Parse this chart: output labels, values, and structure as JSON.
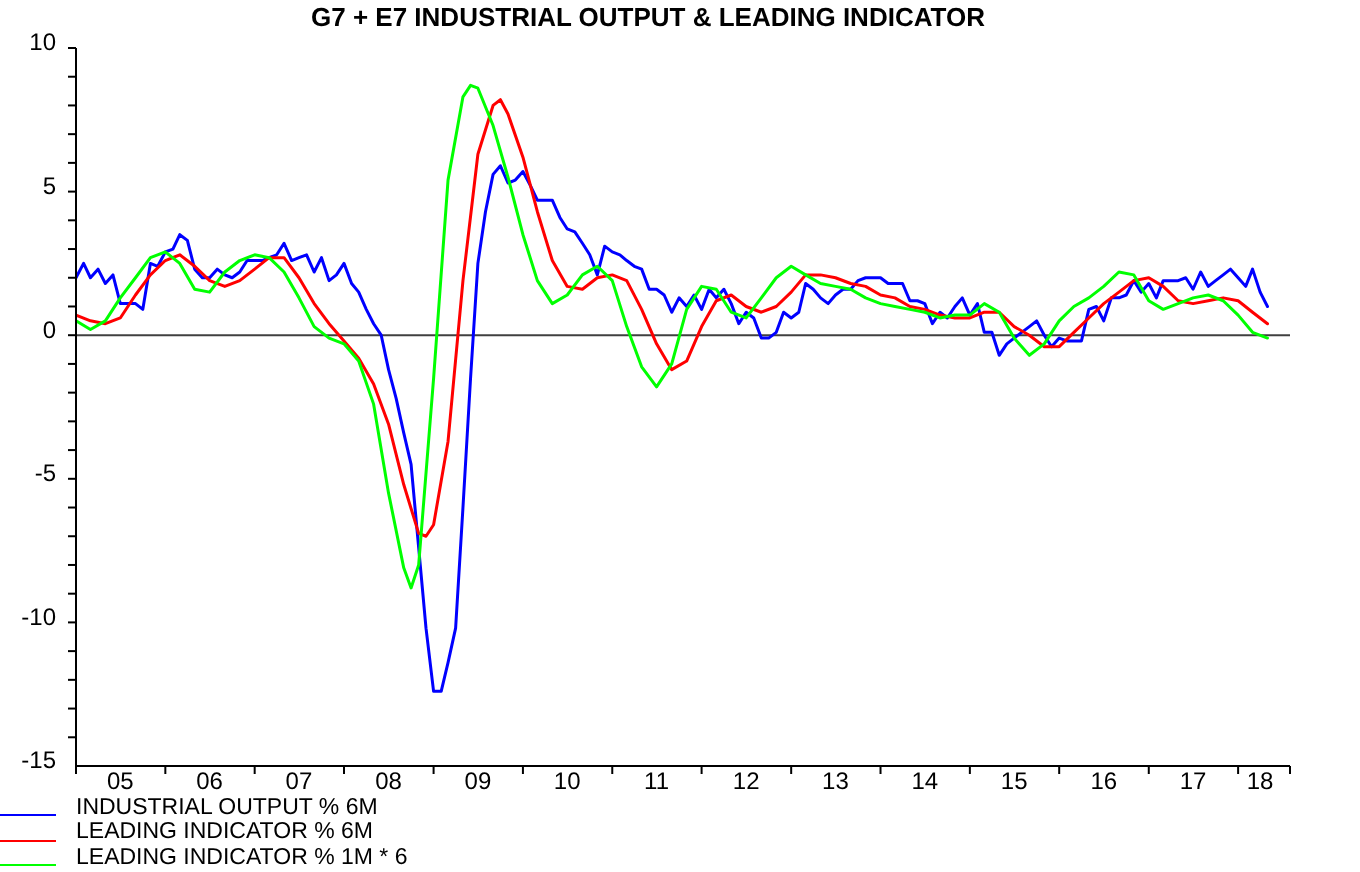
{
  "chart_data": {
    "type": "line",
    "title": "G7 + E7 INDUSTRIAL OUTPUT & LEADING INDICATOR",
    "xlim": [
      "2005-01",
      "2018-08"
    ],
    "xticks": [
      {
        "value": "2005-01",
        "label": null
      },
      {
        "value": "2005-07",
        "label": "05"
      },
      {
        "value": "2006-01",
        "label": null
      },
      {
        "value": "2006-07",
        "label": "06"
      },
      {
        "value": "2007-01",
        "label": null
      },
      {
        "value": "2007-07",
        "label": "07"
      },
      {
        "value": "2008-01",
        "label": null
      },
      {
        "value": "2008-07",
        "label": "08"
      },
      {
        "value": "2009-01",
        "label": null
      },
      {
        "value": "2009-07",
        "label": "09"
      },
      {
        "value": "2010-01",
        "label": null
      },
      {
        "value": "2010-07",
        "label": "10"
      },
      {
        "value": "2011-01",
        "label": null
      },
      {
        "value": "2011-07",
        "label": "11"
      },
      {
        "value": "2012-01",
        "label": null
      },
      {
        "value": "2012-07",
        "label": "12"
      },
      {
        "value": "2013-01",
        "label": null
      },
      {
        "value": "2013-07",
        "label": "13"
      },
      {
        "value": "2014-01",
        "label": null
      },
      {
        "value": "2014-07",
        "label": "14"
      },
      {
        "value": "2015-01",
        "label": null
      },
      {
        "value": "2015-07",
        "label": "15"
      },
      {
        "value": "2016-01",
        "label": null
      },
      {
        "value": "2016-07",
        "label": "16"
      },
      {
        "value": "2017-01",
        "label": null
      },
      {
        "value": "2017-07",
        "label": "17"
      },
      {
        "value": "2018-01",
        "label": null
      },
      {
        "value": "2018-04",
        "label": "18"
      },
      {
        "value": "2018-08",
        "label": null
      }
    ],
    "ylim": [
      -15,
      10
    ],
    "yticks": [
      -15,
      {
        "value": -14,
        "label": null
      },
      {
        "value": -13,
        "label": null
      },
      {
        "value": -12,
        "label": null
      },
      {
        "value": -11,
        "label": null
      },
      -10,
      {
        "value": -9,
        "label": null
      },
      {
        "value": -8,
        "label": null
      },
      {
        "value": -7,
        "label": null
      },
      {
        "value": -6,
        "label": null
      },
      -5,
      {
        "value": -4,
        "label": null
      },
      {
        "value": -3,
        "label": null
      },
      {
        "value": -2,
        "label": null
      },
      {
        "value": -1,
        "label": null
      },
      0,
      {
        "value": 1,
        "label": null
      },
      {
        "value": 2,
        "label": null
      },
      {
        "value": 3,
        "label": null
      },
      {
        "value": 4,
        "label": null
      },
      5,
      {
        "value": 6,
        "label": null
      },
      {
        "value": 7,
        "label": null
      },
      {
        "value": 8,
        "label": null
      },
      {
        "value": 9,
        "label": null
      },
      10
    ],
    "ref_lines": [
      {
        "axis": "y",
        "value": 0,
        "color": "#404040"
      }
    ],
    "legend": "bottom left",
    "series": [
      {
        "name": "INDUSTRIAL OUTPUT % 6M",
        "color": "#0000ff",
        "x": [
          "2005-01",
          "2005-02",
          "2005-03",
          "2005-04",
          "2005-05",
          "2005-06",
          "2005-07",
          "2005-08",
          "2005-09",
          "2005-10",
          "2005-11",
          "2005-12",
          "2006-01",
          "2006-02",
          "2006-03",
          "2006-04",
          "2006-05",
          "2006-06",
          "2006-07",
          "2006-08",
          "2006-09",
          "2006-10",
          "2006-11",
          "2006-12",
          "2007-01",
          "2007-02",
          "2007-03",
          "2007-04",
          "2007-05",
          "2007-06",
          "2007-07",
          "2007-08",
          "2007-09",
          "2007-10",
          "2007-11",
          "2007-12",
          "2008-01",
          "2008-02",
          "2008-03",
          "2008-04",
          "2008-05",
          "2008-06",
          "2008-07",
          "2008-08",
          "2008-09",
          "2008-10",
          "2008-11",
          "2008-12",
          "2009-01",
          "2009-02",
          "2009-03",
          "2009-04",
          "2009-05",
          "2009-06",
          "2009-07",
          "2009-08",
          "2009-09",
          "2009-10",
          "2009-11",
          "2009-12",
          "2010-01",
          "2010-02",
          "2010-03",
          "2010-04",
          "2010-05",
          "2010-06",
          "2010-07",
          "2010-08",
          "2010-09",
          "2010-10",
          "2010-11",
          "2010-12",
          "2011-01",
          "2011-02",
          "2011-03",
          "2011-04",
          "2011-05",
          "2011-06",
          "2011-07",
          "2011-08",
          "2011-09",
          "2011-10",
          "2011-11",
          "2011-12",
          "2012-01",
          "2012-02",
          "2012-03",
          "2012-04",
          "2012-05",
          "2012-06",
          "2012-07",
          "2012-08",
          "2012-09",
          "2012-10",
          "2012-11",
          "2012-12",
          "2013-01",
          "2013-02",
          "2013-03",
          "2013-04",
          "2013-05",
          "2013-06",
          "2013-07",
          "2013-08",
          "2013-09",
          "2013-10",
          "2013-11",
          "2013-12",
          "2014-01",
          "2014-02",
          "2014-03",
          "2014-04",
          "2014-05",
          "2014-06",
          "2014-07",
          "2014-08",
          "2014-09",
          "2014-10",
          "2014-11",
          "2014-12",
          "2015-01",
          "2015-02",
          "2015-03",
          "2015-04",
          "2015-05",
          "2015-06",
          "2015-07",
          "2015-08",
          "2015-09",
          "2015-10",
          "2015-11",
          "2015-12",
          "2016-01",
          "2016-02",
          "2016-03",
          "2016-04",
          "2016-05",
          "2016-06",
          "2016-07",
          "2016-08",
          "2016-09",
          "2016-10",
          "2016-11",
          "2016-12",
          "2017-01",
          "2017-02",
          "2017-03",
          "2017-04",
          "2017-05",
          "2017-06",
          "2017-07",
          "2017-08",
          "2017-09",
          "2017-10",
          "2017-11",
          "2017-12",
          "2018-01",
          "2018-02",
          "2018-03",
          "2018-04",
          "2018-05"
        ],
        "values": [
          2.0,
          2.5,
          2.0,
          2.3,
          1.8,
          2.1,
          1.1,
          1.1,
          1.1,
          0.9,
          2.5,
          2.4,
          2.9,
          3.0,
          3.5,
          3.3,
          2.3,
          2.0,
          2.0,
          2.3,
          2.1,
          2.0,
          2.2,
          2.6,
          2.6,
          2.6,
          2.7,
          2.8,
          3.2,
          2.6,
          2.7,
          2.8,
          2.2,
          2.7,
          1.9,
          2.1,
          2.5,
          1.8,
          1.5,
          0.9,
          0.4,
          0.0,
          -1.2,
          -2.2,
          -3.4,
          -4.5,
          -7.4,
          -10.2,
          -12.4,
          -12.4,
          -11.4,
          -10.2,
          -6.0,
          -1.5,
          2.5,
          4.3,
          5.6,
          5.9,
          5.3,
          5.4,
          5.7,
          5.2,
          4.7,
          4.7,
          4.7,
          4.1,
          3.7,
          3.6,
          3.2,
          2.8,
          2.1,
          3.1,
          2.9,
          2.8,
          2.6,
          2.4,
          2.3,
          1.6,
          1.6,
          1.4,
          0.8,
          1.3,
          1.0,
          1.4,
          0.9,
          1.6,
          1.3,
          1.6,
          1.1,
          0.4,
          0.8,
          0.6,
          -0.1,
          -0.1,
          0.1,
          0.8,
          0.6,
          0.8,
          1.8,
          1.6,
          1.3,
          1.1,
          1.4,
          1.6,
          1.6,
          1.9,
          2.0,
          2.0,
          2.0,
          1.8,
          1.8,
          1.8,
          1.2,
          1.2,
          1.1,
          0.4,
          0.8,
          0.6,
          1.0,
          1.3,
          0.7,
          1.1,
          0.1,
          0.1,
          -0.7,
          -0.3,
          -0.1,
          0.1,
          0.3,
          0.5,
          0.0,
          -0.4,
          -0.1,
          -0.2,
          -0.2,
          -0.2,
          0.9,
          1.0,
          0.5,
          1.3,
          1.3,
          1.4,
          1.9,
          1.5,
          1.8,
          1.3,
          1.9,
          1.9,
          1.9,
          2.0,
          1.6,
          2.2,
          1.7,
          1.9,
          2.1,
          2.3,
          2.0,
          1.7,
          2.3,
          1.5,
          1.0
        ]
      },
      {
        "name": "LEADING INDICATOR % 6M",
        "color": "#ff0000",
        "x": [
          "2005-01",
          "2005-03",
          "2005-05",
          "2005-07",
          "2005-09",
          "2005-11",
          "2006-01",
          "2006-03",
          "2006-05",
          "2006-07",
          "2006-09",
          "2006-11",
          "2007-01",
          "2007-03",
          "2007-05",
          "2007-07",
          "2007-09",
          "2007-11",
          "2008-01",
          "2008-03",
          "2008-05",
          "2008-07",
          "2008-09",
          "2008-11",
          "2008-12",
          "2009-01",
          "2009-03",
          "2009-05",
          "2009-07",
          "2009-09",
          "2009-10",
          "2009-11",
          "2010-01",
          "2010-03",
          "2010-05",
          "2010-07",
          "2010-09",
          "2010-11",
          "2011-01",
          "2011-03",
          "2011-05",
          "2011-07",
          "2011-09",
          "2011-11",
          "2012-01",
          "2012-03",
          "2012-05",
          "2012-07",
          "2012-09",
          "2012-11",
          "2013-01",
          "2013-03",
          "2013-05",
          "2013-07",
          "2013-09",
          "2013-11",
          "2014-01",
          "2014-03",
          "2014-05",
          "2014-07",
          "2014-09",
          "2014-11",
          "2015-01",
          "2015-03",
          "2015-05",
          "2015-07",
          "2015-09",
          "2015-11",
          "2016-01",
          "2016-03",
          "2016-05",
          "2016-07",
          "2016-09",
          "2016-11",
          "2017-01",
          "2017-03",
          "2017-05",
          "2017-07",
          "2017-09",
          "2017-11",
          "2018-01",
          "2018-03",
          "2018-05"
        ],
        "values": [
          0.7,
          0.5,
          0.4,
          0.6,
          1.4,
          2.1,
          2.6,
          2.8,
          2.4,
          1.9,
          1.7,
          1.9,
          2.3,
          2.7,
          2.7,
          2.0,
          1.1,
          0.4,
          -0.2,
          -0.8,
          -1.7,
          -3.1,
          -5.2,
          -6.9,
          -7.0,
          -6.6,
          -3.7,
          1.9,
          6.3,
          8.0,
          8.2,
          7.7,
          6.2,
          4.3,
          2.6,
          1.7,
          1.6,
          2.0,
          2.1,
          1.9,
          0.9,
          -0.3,
          -1.2,
          -0.9,
          0.3,
          1.2,
          1.4,
          1.0,
          0.8,
          1.0,
          1.5,
          2.1,
          2.1,
          2.0,
          1.8,
          1.7,
          1.4,
          1.3,
          1.0,
          0.9,
          0.7,
          0.6,
          0.6,
          0.8,
          0.8,
          0.3,
          0.0,
          -0.4,
          -0.4,
          0.1,
          0.6,
          1.1,
          1.5,
          1.9,
          2.0,
          1.7,
          1.2,
          1.1,
          1.2,
          1.3,
          1.2,
          0.8,
          0.4
        ]
      },
      {
        "name": "LEADING INDICATOR % 1M * 6",
        "color": "#00ff00",
        "x": [
          "2005-01",
          "2005-03",
          "2005-05",
          "2005-07",
          "2005-09",
          "2005-11",
          "2006-01",
          "2006-03",
          "2006-05",
          "2006-07",
          "2006-09",
          "2006-11",
          "2007-01",
          "2007-03",
          "2007-05",
          "2007-07",
          "2007-09",
          "2007-11",
          "2008-01",
          "2008-03",
          "2008-05",
          "2008-07",
          "2008-09",
          "2008-10",
          "2008-11",
          "2009-01",
          "2009-03",
          "2009-05",
          "2009-06",
          "2009-07",
          "2009-09",
          "2009-11",
          "2010-01",
          "2010-03",
          "2010-05",
          "2010-07",
          "2010-09",
          "2010-11",
          "2011-01",
          "2011-03",
          "2011-05",
          "2011-07",
          "2011-09",
          "2011-11",
          "2012-01",
          "2012-03",
          "2012-05",
          "2012-07",
          "2012-09",
          "2012-11",
          "2013-01",
          "2013-03",
          "2013-05",
          "2013-07",
          "2013-09",
          "2013-11",
          "2014-01",
          "2014-03",
          "2014-05",
          "2014-07",
          "2014-09",
          "2014-11",
          "2015-01",
          "2015-03",
          "2015-05",
          "2015-07",
          "2015-09",
          "2015-11",
          "2016-01",
          "2016-03",
          "2016-05",
          "2016-07",
          "2016-09",
          "2016-11",
          "2017-01",
          "2017-03",
          "2017-05",
          "2017-07",
          "2017-09",
          "2017-11",
          "2018-01",
          "2018-03",
          "2018-05"
        ],
        "values": [
          0.5,
          0.2,
          0.5,
          1.3,
          2.0,
          2.7,
          2.9,
          2.5,
          1.6,
          1.5,
          2.2,
          2.6,
          2.8,
          2.7,
          2.2,
          1.3,
          0.3,
          -0.1,
          -0.3,
          -0.9,
          -2.4,
          -5.5,
          -8.1,
          -8.8,
          -8.0,
          -1.5,
          5.4,
          8.3,
          8.7,
          8.6,
          7.3,
          5.5,
          3.5,
          1.9,
          1.1,
          1.4,
          2.1,
          2.4,
          1.9,
          0.3,
          -1.1,
          -1.8,
          -1.0,
          0.9,
          1.7,
          1.6,
          0.8,
          0.6,
          1.3,
          2.0,
          2.4,
          2.1,
          1.8,
          1.7,
          1.6,
          1.3,
          1.1,
          1.0,
          0.9,
          0.8,
          0.6,
          0.7,
          0.7,
          1.1,
          0.8,
          -0.1,
          -0.7,
          -0.3,
          0.5,
          1.0,
          1.3,
          1.7,
          2.2,
          2.1,
          1.2,
          0.9,
          1.1,
          1.3,
          1.4,
          1.2,
          0.7,
          0.1,
          -0.1
        ]
      }
    ]
  }
}
